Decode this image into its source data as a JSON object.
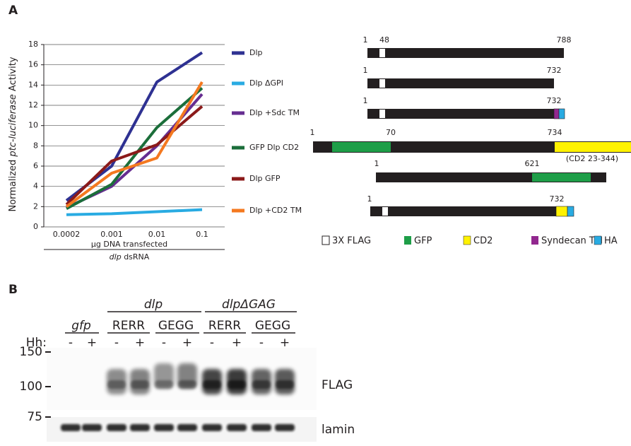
{
  "panels": {
    "a": "A",
    "b": "B"
  },
  "chart_data": {
    "type": "line",
    "ylabel": [
      "Normalized ",
      "ptc-luciferase",
      " Activity"
    ],
    "xlabel": "µg DNA transfected",
    "group_label": [
      "dlp",
      " dsRNA"
    ],
    "categories": [
      "0.0002",
      "0.001",
      "0.01",
      "0.1"
    ],
    "ylim": [
      0,
      18
    ],
    "yticks": [
      0,
      2,
      4,
      6,
      8,
      10,
      12,
      14,
      16,
      18
    ],
    "grid": true,
    "legend": "right",
    "series": [
      {
        "name": "Dlp",
        "color": "#2e3192",
        "values": [
          2.6,
          6.0,
          14.3,
          17.2
        ]
      },
      {
        "name": "Dlp ΔGPI",
        "color": "#29abe2",
        "values": [
          1.2,
          1.3,
          1.5,
          1.7
        ]
      },
      {
        "name": "Dlp +Sdc TM",
        "color": "#662d91",
        "values": [
          1.9,
          4.0,
          8.0,
          13.1
        ]
      },
      {
        "name": "GFP Dlp CD2",
        "color": "#1b6e3a",
        "values": [
          1.8,
          4.2,
          9.8,
          13.7
        ]
      },
      {
        "name": "Dlp GFP",
        "color": "#8b1a1a",
        "values": [
          2.2,
          6.5,
          8.1,
          11.9
        ]
      },
      {
        "name": "Dlp +CD2 TM",
        "color": "#f47920",
        "values": [
          2.0,
          5.3,
          6.8,
          14.3
        ]
      }
    ]
  },
  "constructs": [
    [
      "1",
      "48",
      "788"
    ],
    [
      "1",
      "732"
    ],
    [
      "1",
      "732"
    ],
    [
      "1",
      "70",
      "734",
      "(CD2 23-344)"
    ],
    [
      "1",
      "621"
    ],
    [
      "1",
      "732"
    ]
  ],
  "construct_legend": [
    "3X FLAG",
    "GFP",
    "CD2",
    "Syndecan TM",
    "HA"
  ],
  "blot": {
    "groups": [
      "gfp",
      "dlp",
      "dlpΔGAG"
    ],
    "subgroups": [
      "RERR",
      "GEGG",
      "RERR",
      "GEGG"
    ],
    "treatment": "Hh:",
    "signs": [
      "-",
      "+",
      "-",
      "+",
      "-",
      "+",
      "-",
      "+",
      "-",
      "+"
    ],
    "markers": [
      150,
      100,
      75
    ],
    "labels": [
      "FLAG",
      "lamin"
    ]
  }
}
